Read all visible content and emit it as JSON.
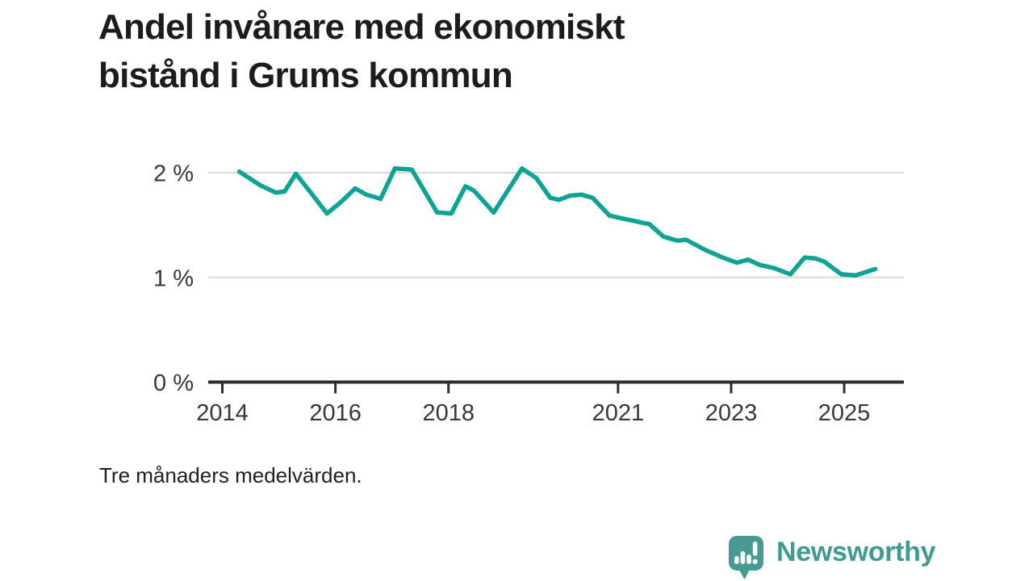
{
  "title": {
    "line1": "Andel invånare med ekonomiskt",
    "line2": "bistånd i Grums kommun"
  },
  "note": "Tre månaders medelvärden.",
  "branding": {
    "name": "Newsworthy",
    "icon": "speech-bubble-bar-chart-icon",
    "color": "#3f9a90"
  },
  "chart_data": {
    "type": "line",
    "title": "Andel invånare med ekonomiskt bistånd i Grums kommun",
    "subtitle": "Tre månaders medelvärden.",
    "unit": "%",
    "grid": "horizontal",
    "legend_position": "none",
    "x_range_years": [
      2013.75,
      2026.05
    ],
    "ylim": [
      0,
      2.3
    ],
    "xlabel": "",
    "ylabel": "",
    "y_ticks": [
      {
        "label": "2 %",
        "value": 2
      },
      {
        "label": "1 %",
        "value": 1
      },
      {
        "label": "0 %",
        "value": 0
      }
    ],
    "x_ticks": [
      {
        "label": "2014",
        "year": 2014
      },
      {
        "label": "2016",
        "year": 2016
      },
      {
        "label": "2018",
        "year": 2018
      },
      {
        "label": "2021",
        "year": 2021
      },
      {
        "label": "2023",
        "year": 2023
      },
      {
        "label": "2025",
        "year": 2025
      }
    ],
    "series": [
      {
        "name": "Andel invånare med ekonomiskt bistånd",
        "color": "#0fa396",
        "points": [
          [
            2014.3,
            2.01
          ],
          [
            2014.67,
            1.88
          ],
          [
            2014.95,
            1.81
          ],
          [
            2015.1,
            1.82
          ],
          [
            2015.3,
            1.99
          ],
          [
            2015.55,
            1.82
          ],
          [
            2015.85,
            1.61
          ],
          [
            2016.1,
            1.72
          ],
          [
            2016.35,
            1.85
          ],
          [
            2016.55,
            1.79
          ],
          [
            2016.8,
            1.75
          ],
          [
            2017.05,
            2.04
          ],
          [
            2017.35,
            2.03
          ],
          [
            2017.8,
            1.62
          ],
          [
            2018.05,
            1.61
          ],
          [
            2018.3,
            1.87
          ],
          [
            2018.45,
            1.83
          ],
          [
            2018.8,
            1.62
          ],
          [
            2019.3,
            2.04
          ],
          [
            2019.55,
            1.95
          ],
          [
            2019.8,
            1.76
          ],
          [
            2019.95,
            1.74
          ],
          [
            2020.15,
            1.78
          ],
          [
            2020.35,
            1.79
          ],
          [
            2020.55,
            1.76
          ],
          [
            2020.85,
            1.59
          ],
          [
            2021.1,
            1.56
          ],
          [
            2021.45,
            1.52
          ],
          [
            2021.55,
            1.51
          ],
          [
            2021.8,
            1.39
          ],
          [
            2022.05,
            1.35
          ],
          [
            2022.2,
            1.36
          ],
          [
            2022.55,
            1.26
          ],
          [
            2022.85,
            1.19
          ],
          [
            2023.1,
            1.14
          ],
          [
            2023.3,
            1.17
          ],
          [
            2023.5,
            1.12
          ],
          [
            2023.75,
            1.09
          ],
          [
            2023.95,
            1.05
          ],
          [
            2024.05,
            1.03
          ],
          [
            2024.3,
            1.19
          ],
          [
            2024.5,
            1.18
          ],
          [
            2024.65,
            1.15
          ],
          [
            2024.95,
            1.03
          ],
          [
            2025.2,
            1.02
          ],
          [
            2025.55,
            1.08
          ]
        ]
      }
    ],
    "colors": {
      "line": "#0fa396",
      "grid": "#d9d9d9",
      "axis": "#2e2e2e",
      "tick_label": "#383838"
    }
  }
}
